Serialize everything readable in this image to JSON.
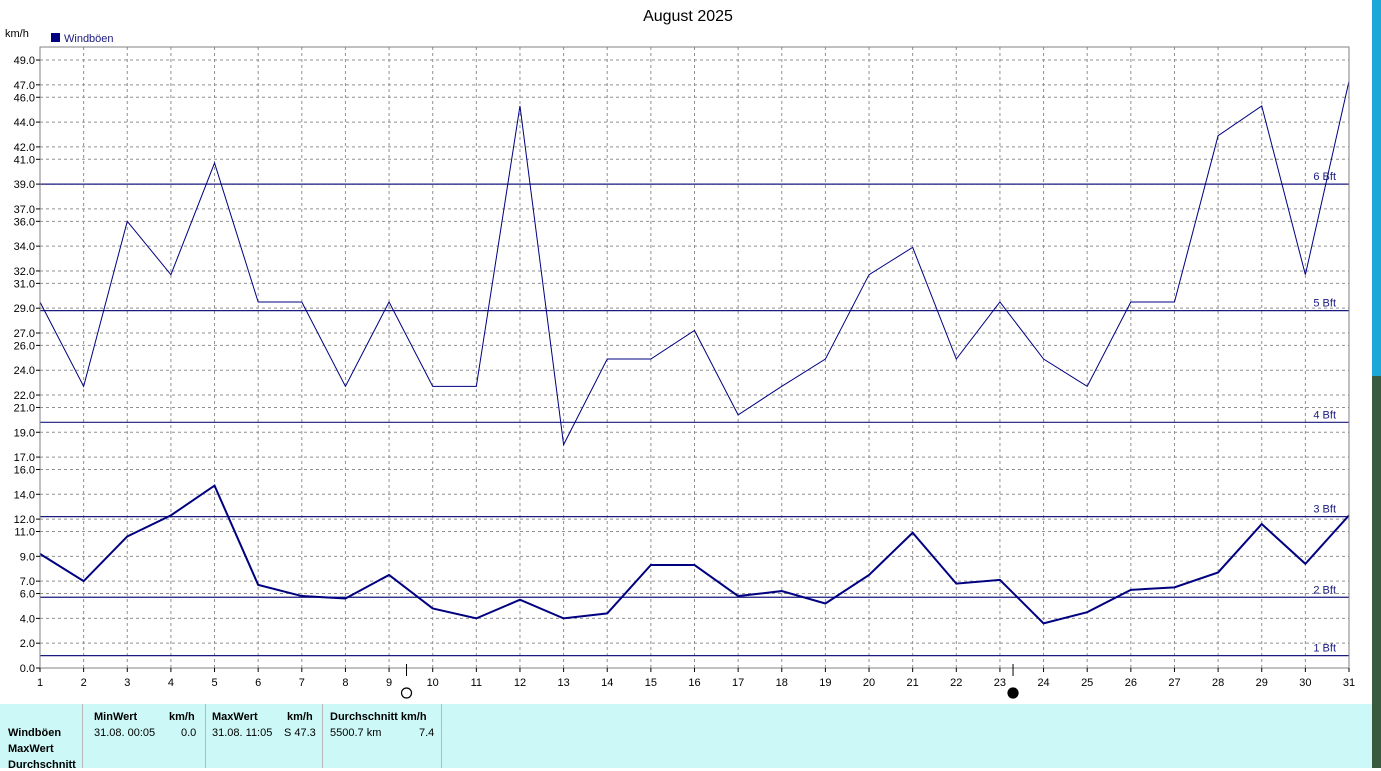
{
  "chart_data": {
    "type": "line",
    "title": "August 2025",
    "ylabel": "km/h",
    "ylim": [
      0,
      50
    ],
    "y_ticks": [
      0.0,
      2.0,
      4.0,
      6.0,
      7.0,
      9.0,
      11.0,
      12.0,
      14.0,
      16.0,
      17.0,
      19.0,
      21.0,
      22.0,
      24.0,
      26.0,
      27.0,
      29.0,
      31.0,
      32.0,
      34.0,
      36.0,
      37.0,
      39.0,
      41.0,
      42.0,
      44.0,
      46.0,
      47.0,
      49.0
    ],
    "x": [
      1,
      2,
      3,
      4,
      5,
      6,
      7,
      8,
      9,
      10,
      11,
      12,
      13,
      14,
      15,
      16,
      17,
      18,
      19,
      20,
      21,
      22,
      23,
      24,
      25,
      26,
      27,
      28,
      29,
      30,
      31
    ],
    "xlim": [
      1,
      31
    ],
    "legend": "top-left",
    "grid": true,
    "series": [
      {
        "name": "Windböen",
        "color": "#000080",
        "values": [
          29.5,
          22.7,
          36.0,
          31.7,
          40.7,
          29.5,
          29.5,
          22.7,
          29.5,
          22.7,
          22.7,
          45.3,
          18.0,
          24.9,
          24.9,
          27.2,
          20.4,
          22.7,
          24.9,
          31.7,
          33.9,
          24.9,
          29.5,
          24.9,
          22.7,
          29.5,
          29.5,
          42.9,
          45.3,
          31.7,
          47.3
        ]
      },
      {
        "name": "",
        "color": "#000080",
        "values": [
          9.2,
          7.0,
          10.6,
          12.3,
          14.7,
          6.7,
          5.8,
          5.6,
          7.5,
          4.8,
          4.0,
          5.5,
          4.0,
          4.4,
          8.3,
          8.3,
          5.8,
          6.2,
          5.2,
          7.5,
          10.9,
          6.8,
          7.1,
          3.6,
          4.5,
          6.3,
          6.5,
          7.7,
          11.6,
          8.4,
          12.3
        ]
      }
    ],
    "reference_lines": [
      {
        "label": "1 Bft",
        "value": 1.0
      },
      {
        "label": "2 Bft",
        "value": 5.7
      },
      {
        "label": "3 Bft",
        "value": 12.2
      },
      {
        "label": "4 Bft",
        "value": 19.8
      },
      {
        "label": "5 Bft",
        "value": 28.8
      },
      {
        "label": "6 Bft",
        "value": 39.0
      }
    ],
    "moon_phases": [
      {
        "day": 9.4,
        "phase": "full"
      },
      {
        "day": 23.3,
        "phase": "new"
      }
    ]
  },
  "stats": {
    "rows": [
      "Windböen",
      "MaxWert",
      "Durchschnitt"
    ],
    "min": {
      "header": "MinWert",
      "unit": "km/h",
      "time": "31.08.  00:05",
      "value": "0.0"
    },
    "max": {
      "header": "MaxWert",
      "unit": "km/h",
      "time": "31.08.  11:05",
      "value": "S 47.3"
    },
    "avg": {
      "header": "Durchschnitt km/h",
      "distance": "5500.7 km",
      "value": "7.4"
    }
  }
}
